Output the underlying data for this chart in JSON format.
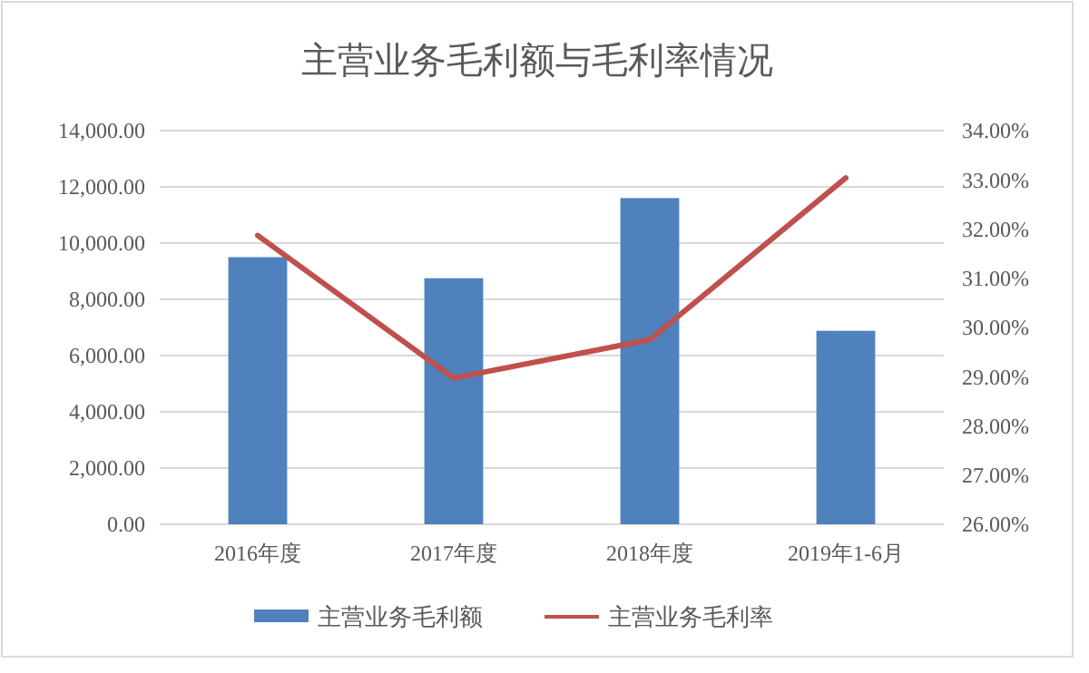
{
  "chart_data": {
    "type": "bar",
    "title": "主营业务毛利额与毛利率情况",
    "categories": [
      "2016年度",
      "2017年度",
      "2018年度",
      "2019年1-6月"
    ],
    "series": [
      {
        "name": "主营业务毛利额",
        "color": "#4f81bd",
        "values": [
          9500,
          8750,
          11600,
          6880
        ]
      },
      {
        "name": "主营业务毛利率",
        "type": "line",
        "axis": "y2",
        "color": "#c0504d",
        "values": [
          31.87,
          28.97,
          29.75,
          33.04
        ]
      }
    ],
    "ylim": [
      0,
      14000
    ],
    "yticks": [
      {
        "value": 0,
        "label": "0.00"
      },
      {
        "value": 2000,
        "label": "2,000.00"
      },
      {
        "value": 4000,
        "label": "4,000.00"
      },
      {
        "value": 6000,
        "label": "6,000.00"
      },
      {
        "value": 8000,
        "label": "8,000.00"
      },
      {
        "value": 10000,
        "label": "10,000.00"
      },
      {
        "value": 12000,
        "label": "12,000.00"
      },
      {
        "value": 14000,
        "label": "14,000.00"
      }
    ],
    "y2lim": [
      26,
      34
    ],
    "y2ticks": [
      {
        "value": 26,
        "label": "26.00%"
      },
      {
        "value": 27,
        "label": "27.00%"
      },
      {
        "value": 28,
        "label": "28.00%"
      },
      {
        "value": 29,
        "label": "29.00%"
      },
      {
        "value": 30,
        "label": "30.00%"
      },
      {
        "value": 31,
        "label": "31.00%"
      },
      {
        "value": 32,
        "label": "32.00%"
      },
      {
        "value": 33,
        "label": "33.00%"
      },
      {
        "value": 34,
        "label": "34.00%"
      }
    ],
    "grid": "y",
    "legend": "bottom"
  }
}
